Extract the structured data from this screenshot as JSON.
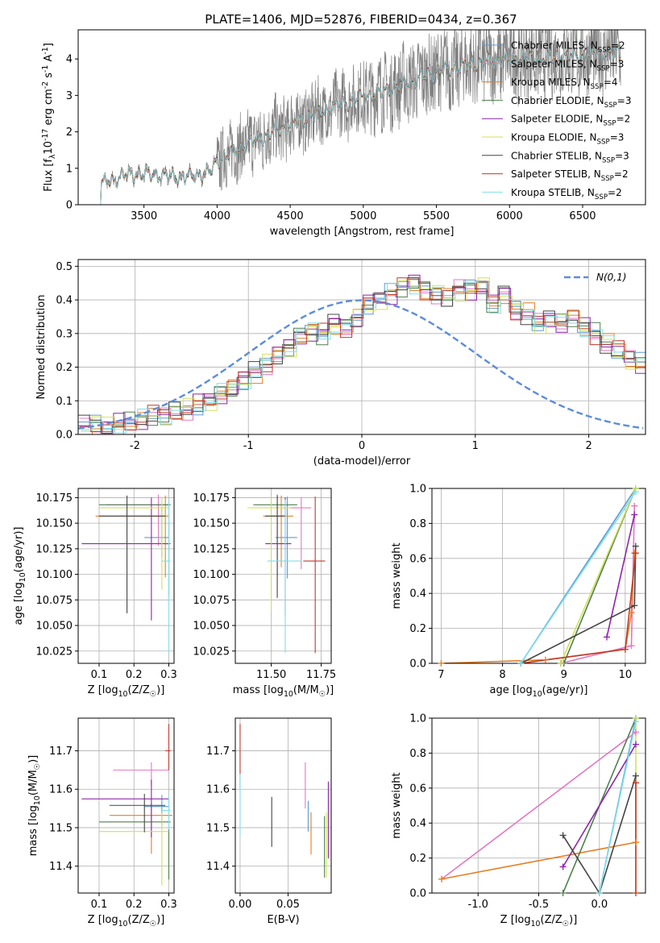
{
  "figure": {
    "title": "PLATE=1406, MJD=52876, FIBERID=0434, z=0.367"
  },
  "chart_data": [
    {
      "type": "line",
      "xlabel": "wavelength [Angstrom, rest frame]",
      "ylabel": "Flux [f$_\\lambda$10$^{-17}$ erg cm$^{-2}$ s$^{-1}$ A$^{-1}$]",
      "xlim": [
        3050,
        6930
      ],
      "ylim": [
        0,
        4.8
      ],
      "xticks": [
        3500,
        4000,
        4500,
        5000,
        5500,
        6000,
        6500
      ],
      "yticks": [
        0,
        1,
        2,
        3,
        4
      ],
      "data_trace": {
        "name": "data",
        "color": "#808080"
      },
      "legend_placement": "upper right",
      "continuum_x": [
        3200,
        3400,
        3600,
        3800,
        3950,
        4000,
        4200,
        4500,
        4800,
        5000,
        5200,
        5500,
        5800,
        6000,
        6300,
        6750
      ],
      "continuum_y": [
        0.55,
        0.85,
        0.82,
        0.75,
        0.9,
        1.2,
        1.65,
        2.2,
        2.7,
        2.95,
        3.2,
        3.65,
        3.9,
        4.0,
        4.05,
        4.2
      ],
      "series": [
        {
          "name": "Chabrier MILES, N$_{SSP}$=2",
          "color": "#5B9BD5"
        },
        {
          "name": "Salpeter MILES, N$_{SSP}$=3",
          "color": "#E377C2"
        },
        {
          "name": "Kroupa MILES, N$_{SSP}$=4",
          "color": "#E67E22"
        },
        {
          "name": "Chabrier ELODIE, N$_{SSP}$=3",
          "color": "#4F7F4F"
        },
        {
          "name": "Salpeter ELODIE, N$_{SSP}$=2",
          "color": "#8E24AA"
        },
        {
          "name": "Kroupa ELODIE, N$_{SSP}$=3",
          "color": "#D4E157"
        },
        {
          "name": "Chabrier STELIB, N$_{SSP}$=3",
          "color": "#444444"
        },
        {
          "name": "Salpeter STELIB, N$_{SSP}$=2",
          "color": "#C0392B"
        },
        {
          "name": "Kroupa STELIB, N$_{SSP}$=2",
          "color": "#80DEEA"
        }
      ]
    },
    {
      "type": "line",
      "xlabel": "(data-model)/error",
      "ylabel": "Normed distribution",
      "xlim": [
        -2.5,
        2.5
      ],
      "ylim": [
        0,
        0.52
      ],
      "xticks": [
        -2,
        -1,
        0,
        1,
        2
      ],
      "yticks": [
        0.0,
        0.1,
        0.2,
        0.3,
        0.4,
        0.5
      ],
      "grid": true,
      "legend_placement": "upper right",
      "gaussian": {
        "name": "$\\mathcal{N}(0,1)$",
        "color": "#5B8DDB",
        "mu": 0,
        "sigma": 1
      },
      "hist_bin_width": 0.1,
      "hist_bin_start": -2.5,
      "hist_values": [
        0.025,
        0.028,
        0.025,
        0.03,
        0.035,
        0.042,
        0.055,
        0.05,
        0.07,
        0.075,
        0.09,
        0.1,
        0.12,
        0.135,
        0.16,
        0.185,
        0.21,
        0.24,
        0.26,
        0.29,
        0.305,
        0.3,
        0.33,
        0.32,
        0.35,
        0.39,
        0.4,
        0.42,
        0.44,
        0.45,
        0.43,
        0.42,
        0.41,
        0.43,
        0.43,
        0.44,
        0.39,
        0.42,
        0.37,
        0.36,
        0.33,
        0.34,
        0.33,
        0.35,
        0.32,
        0.3,
        0.27,
        0.25,
        0.22,
        0.21,
        0.18,
        0.16,
        0.14,
        0.13,
        0.11,
        0.1,
        0.085,
        0.075,
        0.065,
        0.058,
        0.045,
        0.04,
        0.03,
        0.028,
        0.025
      ]
    },
    {
      "type": "scatter",
      "xlabel": "Z [log$_{10}$(Z/Z$_\\odot$)]",
      "ylabel": "age  [log$_{10}$(age/yr)]",
      "xlim": [
        0.04,
        0.315
      ],
      "ylim": [
        10.013,
        10.184
      ],
      "xticks": [
        0.1,
        0.2,
        0.3
      ],
      "yticks": [
        10.025,
        10.05,
        10.075,
        10.1,
        10.125,
        10.15,
        10.175
      ],
      "grid": true,
      "points": [
        {
          "color": "#5B9BD5",
          "x": 0.28,
          "xerr": [
            0.05,
            0.02
          ],
          "y": 10.136,
          "yerr": [
            0.02,
            0.03
          ]
        },
        {
          "color": "#E377C2",
          "x": 0.27,
          "xerr": [
            0.15,
            0.03
          ],
          "y": 10.168,
          "yerr": [
            0.04,
            0.01
          ]
        },
        {
          "color": "#E67E22",
          "x": 0.29,
          "xerr": [
            0.2,
            0.01
          ],
          "y": 10.157,
          "yerr": [
            0.06,
            0.02
          ]
        },
        {
          "color": "#4F7F4F",
          "x": 0.3,
          "xerr": [
            0.2,
            0.005
          ],
          "y": 10.168,
          "yerr": [
            0.09,
            0.005
          ]
        },
        {
          "color": "#8E24AA",
          "x": 0.25,
          "xerr": [
            0.2,
            0.05
          ],
          "y": 10.13,
          "yerr": [
            0.075,
            0.045
          ]
        },
        {
          "color": "#D4E157",
          "x": 0.28,
          "xerr": [
            0.18,
            0.02
          ],
          "y": 10.165,
          "yerr": [
            0.08,
            0.01
          ]
        },
        {
          "color": "#444444",
          "x": 0.18,
          "xerr": [
            0.08,
            0.11
          ],
          "y": 10.157,
          "yerr": [
            0.095,
            0.02
          ]
        },
        {
          "color": "#C0392B",
          "x": 0.3,
          "xerr": [
            0.01,
            0.005
          ],
          "y": 10.13,
          "yerr": [
            0.05,
            0.02
          ]
        },
        {
          "color": "#80DEEA",
          "x": 0.3,
          "xerr": [
            0.02,
            0.005
          ],
          "y": 10.113,
          "yerr": [
            0.09,
            0.06
          ]
        }
      ]
    },
    {
      "type": "scatter",
      "xlabel": "mass [log$_{10}$(M/M$_\\odot$)]",
      "ylabel": "",
      "xlim": [
        11.32,
        11.8
      ],
      "ylim": [
        10.013,
        10.184
      ],
      "xticks": [
        11.5,
        11.75
      ],
      "yticks": [
        10.025,
        10.05,
        10.075,
        10.1,
        10.125,
        10.15,
        10.175
      ],
      "grid": true,
      "points": [
        {
          "color": "#5B9BD5",
          "x": 11.58,
          "xerr": [
            0.06,
            0.05
          ],
          "y": 10.136,
          "yerr": [
            0.04,
            0.04
          ]
        },
        {
          "color": "#E377C2",
          "x": 11.65,
          "xerr": [
            0.1,
            0.05
          ],
          "y": 10.165,
          "yerr": [
            0.06,
            0.01
          ]
        },
        {
          "color": "#E67E22",
          "x": 11.55,
          "xerr": [
            0.09,
            0.06
          ],
          "y": 10.157,
          "yerr": [
            0.05,
            0.02
          ]
        },
        {
          "color": "#4F7F4F",
          "x": 11.53,
          "xerr": [
            0.12,
            0.1
          ],
          "y": 10.168,
          "yerr": [
            0.07,
            0.01
          ]
        },
        {
          "color": "#8E24AA",
          "x": 11.57,
          "xerr": [
            0.1,
            0.03
          ],
          "y": 10.13,
          "yerr": [
            0.07,
            0.045
          ]
        },
        {
          "color": "#D4E157",
          "x": 11.5,
          "xerr": [
            0.12,
            0.1
          ],
          "y": 10.165,
          "yerr": [
            0.1,
            0.01
          ]
        },
        {
          "color": "#444444",
          "x": 11.53,
          "xerr": [
            0.06,
            0.04
          ],
          "y": 10.157,
          "yerr": [
            0.08,
            0.02
          ]
        },
        {
          "color": "#C0392B",
          "x": 11.72,
          "xerr": [
            0.06,
            0.05
          ],
          "y": 10.113,
          "yerr": [
            0.09,
            0.063
          ]
        },
        {
          "color": "#80DEEA",
          "x": 11.57,
          "xerr": [
            0.09,
            0.08
          ],
          "y": 10.113,
          "yerr": [
            0.09,
            0.06
          ]
        }
      ]
    },
    {
      "type": "line",
      "xlabel": "age  [log$_{10}$(age/yr)]",
      "ylabel": "mass weight",
      "xlim": [
        6.85,
        10.33
      ],
      "ylim": [
        0,
        1
      ],
      "xticks": [
        7,
        8,
        9,
        10
      ],
      "yticks": [
        0.0,
        0.2,
        0.4,
        0.6,
        0.8,
        1.0
      ],
      "grid": true,
      "series": [
        {
          "color": "#5B9BD5",
          "x": [
            8.3,
            10.17
          ],
          "y": [
            0.0,
            1.0
          ]
        },
        {
          "color": "#E377C2",
          "x": [
            8.95,
            10.1,
            10.15
          ],
          "y": [
            0.0,
            0.1,
            0.9
          ]
        },
        {
          "color": "#E67E22",
          "x": [
            7.0,
            8.7,
            10.0,
            10.1,
            10.15
          ],
          "y": [
            0.0,
            0.02,
            0.08,
            0.29,
            0.63
          ]
        },
        {
          "color": "#4F7F4F",
          "x": [
            8.95,
            9.0,
            10.17
          ],
          "y": [
            0.0,
            0.0,
            1.0
          ]
        },
        {
          "color": "#8E24AA",
          "x": [
            9.7,
            10.15
          ],
          "y": [
            0.15,
            0.85
          ]
        },
        {
          "color": "#D4E157",
          "x": [
            8.95,
            10.17
          ],
          "y": [
            0.0,
            1.0
          ]
        },
        {
          "color": "#444444",
          "x": [
            8.3,
            10.15,
            10.17
          ],
          "y": [
            0.0,
            0.33,
            0.67
          ]
        },
        {
          "color": "#C0392B",
          "x": [
            8.3,
            10.0,
            10.17
          ],
          "y": [
            0.0,
            0.08,
            0.63
          ]
        },
        {
          "color": "#80DEEA",
          "x": [
            8.3,
            10.17
          ],
          "y": [
            0.0,
            0.98
          ]
        }
      ]
    },
    {
      "type": "scatter",
      "xlabel": "Z [log$_{10}$(Z/Z$_\\odot$)]",
      "ylabel": "mass [log$_{10}$(M/M$_\\odot$)]",
      "xlim": [
        0.04,
        0.315
      ],
      "ylim": [
        11.33,
        11.785
      ],
      "xticks": [
        0.1,
        0.2,
        0.3
      ],
      "yticks": [
        11.4,
        11.5,
        11.6,
        11.7
      ],
      "grid": true,
      "points": [
        {
          "color": "#5B9BD5",
          "x": 0.28,
          "xerr": [
            0.05,
            0.02
          ],
          "y": 11.555,
          "yerr": [
            0.05,
            0.03
          ]
        },
        {
          "color": "#E377C2",
          "x": 0.25,
          "xerr": [
            0.11,
            0.05
          ],
          "y": 11.65,
          "yerr": [
            0.04,
            0.02
          ]
        },
        {
          "color": "#E67E22",
          "x": 0.25,
          "xerr": [
            0.12,
            0.06
          ],
          "y": 11.532,
          "yerr": [
            0.1,
            0.03
          ]
        },
        {
          "color": "#4F7F4F",
          "x": 0.3,
          "xerr": [
            0.2,
            0.005
          ],
          "y": 11.515,
          "yerr": [
            0.15,
            0.06
          ]
        },
        {
          "color": "#8E24AA",
          "x": 0.25,
          "xerr": [
            0.2,
            0.05
          ],
          "y": 11.575,
          "yerr": [
            0.1,
            0.05
          ]
        },
        {
          "color": "#D4E157",
          "x": 0.28,
          "xerr": [
            0.18,
            0.02
          ],
          "y": 11.49,
          "yerr": [
            0.14,
            0.05
          ]
        },
        {
          "color": "#444444",
          "x": 0.23,
          "xerr": [
            0.1,
            0.06
          ],
          "y": 11.558,
          "yerr": [
            0.07,
            0.03
          ]
        },
        {
          "color": "#C0392B",
          "x": 0.3,
          "xerr": [
            0.01,
            0.005
          ],
          "y": 11.7,
          "yerr": [
            0.05,
            0.07
          ]
        },
        {
          "color": "#80DEEA",
          "x": 0.3,
          "xerr": [
            0.02,
            0.005
          ],
          "y": 11.545,
          "yerr": [
            0.05,
            0.04
          ]
        }
      ]
    },
    {
      "type": "scatter",
      "xlabel": "E(B-V)",
      "ylabel": "",
      "xlim": [
        -0.005,
        0.095
      ],
      "ylim": [
        11.33,
        11.785
      ],
      "xticks": [
        0.0,
        0.05
      ],
      "yticks": [
        11.4,
        11.5,
        11.6,
        11.7
      ],
      "grid": true,
      "points": [
        {
          "color": "#5B9BD5",
          "x": 0.071,
          "yerr": [
            0.04,
            0.04
          ],
          "y": 11.53
        },
        {
          "color": "#E377C2",
          "x": 0.068,
          "yerr": [
            0.05,
            0.07
          ],
          "y": 11.6
        },
        {
          "color": "#E67E22",
          "x": 0.074,
          "yerr": [
            0.07,
            0.04
          ],
          "y": 11.5
        },
        {
          "color": "#4F7F4F",
          "x": 0.088,
          "yerr": [
            0.1,
            0.06
          ],
          "y": 11.47
        },
        {
          "color": "#8E24AA",
          "x": 0.092,
          "yerr": [
            0.1,
            0.1
          ],
          "y": 11.52
        },
        {
          "color": "#D4E157",
          "x": 0.09,
          "yerr": [
            0.07,
            0.1
          ],
          "y": 11.44
        },
        {
          "color": "#444444",
          "x": 0.033,
          "yerr": [
            0.07,
            0.06
          ],
          "y": 11.52
        },
        {
          "color": "#C0392B",
          "x": 0.0,
          "yerr": [
            0.1,
            0.07
          ],
          "y": 11.7
        },
        {
          "color": "#80DEEA",
          "x": 0.0,
          "yerr": [
            0.11,
            0.05
          ],
          "y": 11.59
        }
      ]
    },
    {
      "type": "line",
      "xlabel": "Z [log$_{10}$(Z/Z$_\\odot$)]",
      "ylabel": "mass weight",
      "xlim": [
        -1.38,
        0.38
      ],
      "ylim": [
        0,
        1
      ],
      "xticks": [
        -1.0,
        -0.5,
        0.0
      ],
      "yticks": [
        0.0,
        0.2,
        0.4,
        0.6,
        0.8,
        1.0
      ],
      "grid": true,
      "series": [
        {
          "color": "#5B9BD5",
          "x": [
            0.0,
            0.3
          ],
          "y": [
            0.0,
            1.0
          ]
        },
        {
          "color": "#E377C2",
          "x": [
            -1.3,
            0.3
          ],
          "y": [
            0.08,
            0.92
          ]
        },
        {
          "color": "#E67E22",
          "x": [
            -1.3,
            0.3,
            0.3
          ],
          "y": [
            0.08,
            0.29,
            0.63
          ]
        },
        {
          "color": "#4F7F4F",
          "x": [
            -0.3,
            0.3
          ],
          "y": [
            0.0,
            1.0
          ]
        },
        {
          "color": "#8E24AA",
          "x": [
            -0.3,
            0.3
          ],
          "y": [
            0.15,
            0.85
          ]
        },
        {
          "color": "#D4E157",
          "x": [
            0.3,
            0.3
          ],
          "y": [
            0.0,
            1.0
          ]
        },
        {
          "color": "#444444",
          "x": [
            -0.3,
            0.0,
            0.3
          ],
          "y": [
            0.33,
            0.0,
            0.67
          ]
        },
        {
          "color": "#C0392B",
          "x": [
            0.3,
            0.3
          ],
          "y": [
            0.0,
            0.63
          ]
        },
        {
          "color": "#80DEEA",
          "x": [
            0.0,
            0.3
          ],
          "y": [
            0.0,
            0.98
          ]
        }
      ]
    }
  ]
}
